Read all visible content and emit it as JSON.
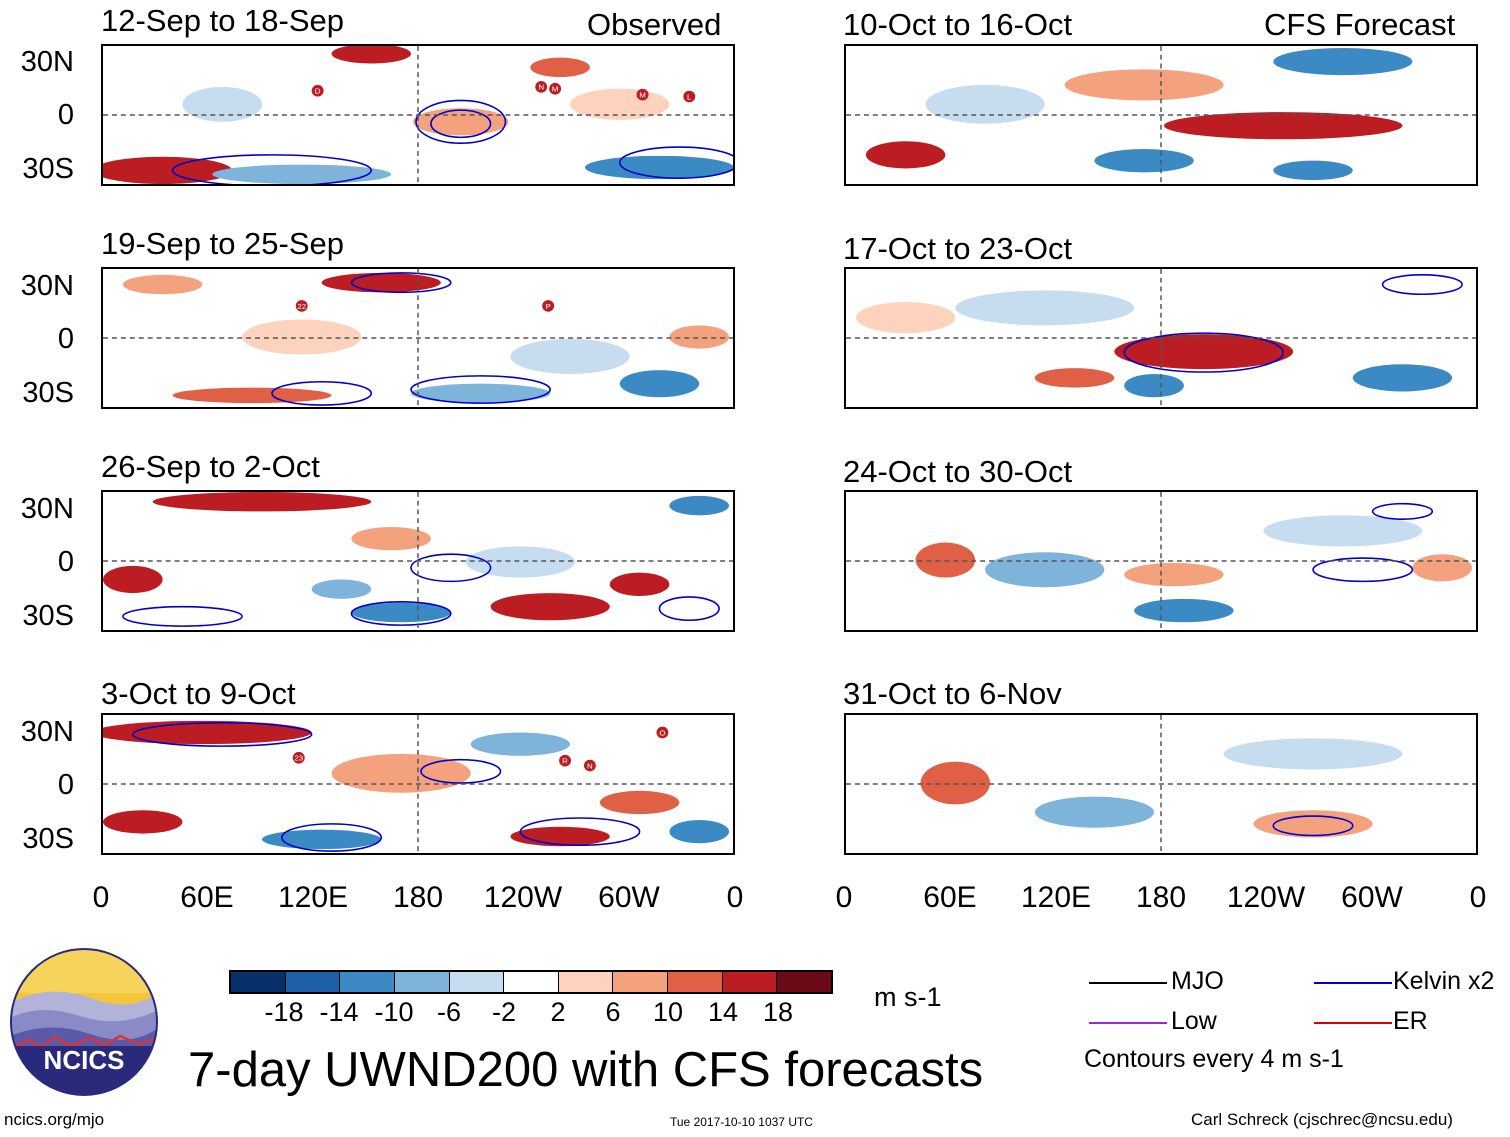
{
  "header": {
    "observed_label": "Observed",
    "forecast_label": "CFS Forecast"
  },
  "panels": {
    "observed": [
      {
        "title": "12-Sep to 18-Sep"
      },
      {
        "title": "19-Sep to 25-Sep"
      },
      {
        "title": "26-Sep to 2-Oct"
      },
      {
        "title": "3-Oct to 9-Oct"
      }
    ],
    "forecast": [
      {
        "title": "10-Oct to 16-Oct"
      },
      {
        "title": "17-Oct to 23-Oct"
      },
      {
        "title": "24-Oct to 30-Oct"
      },
      {
        "title": "31-Oct to 6-Nov"
      }
    ]
  },
  "axes": {
    "lat_labels": [
      "30N",
      "0",
      "30S"
    ],
    "lon_labels": [
      "0",
      "60E",
      "120E",
      "180",
      "120W",
      "60W",
      "0"
    ]
  },
  "storm_markers": {
    "panel_1": [
      "D",
      "N",
      "M",
      "M",
      "L"
    ],
    "panel_2": [
      "22",
      "P"
    ],
    "panel_4": [
      "23",
      "R",
      "N",
      "O"
    ]
  },
  "colorbar": {
    "labels": [
      "-18",
      "-14",
      "-10",
      "-6",
      "-2",
      "2",
      "6",
      "10",
      "14",
      "18"
    ],
    "colors": [
      "#08306b",
      "#1f5fa6",
      "#3b8ac4",
      "#7fb4da",
      "#c6dcef",
      "#ffffff",
      "#fdd3bd",
      "#f4a27e",
      "#e06045",
      "#bb1d22",
      "#6b0a16"
    ],
    "units": "m s-1"
  },
  "legend": {
    "items": [
      {
        "label": "MJO",
        "color": "#000000"
      },
      {
        "label": "Kelvin x2",
        "color": "#0000cc"
      },
      {
        "label": "Low",
        "color": "#a020f0"
      },
      {
        "label": "ER",
        "color": "#dd0000"
      }
    ],
    "contour_note": "Contours every 4 m s-1"
  },
  "logo": {
    "text": "NCICS"
  },
  "footer": {
    "title": "7-day UWND200 with CFS forecasts",
    "url": "ncics.org/mjo",
    "timestamp": "Tue 2017-10-10 1037 UTC",
    "author": "Carl Schreck (cjschrec@ncsu.edu)"
  }
}
